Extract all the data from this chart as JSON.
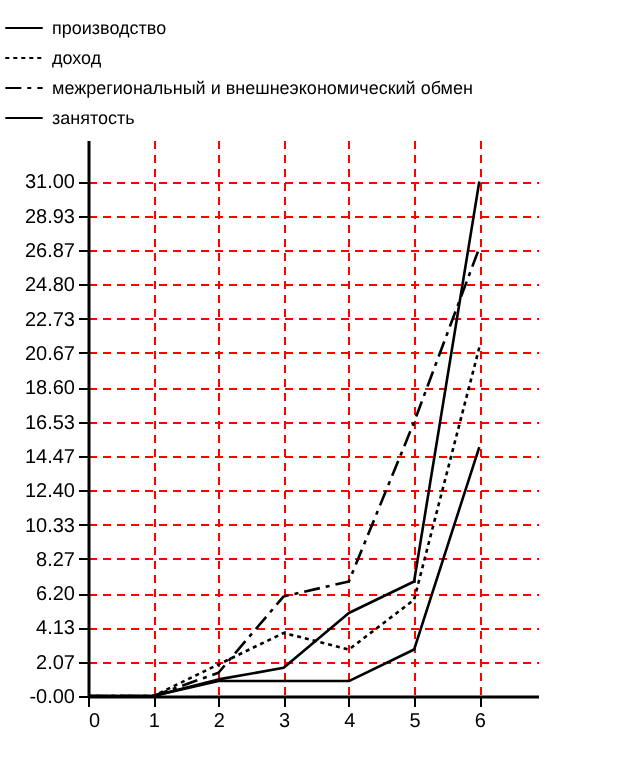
{
  "chart_data": {
    "type": "line",
    "x": [
      0,
      1,
      2,
      3,
      4,
      5,
      6
    ],
    "series": [
      {
        "name": "производство",
        "color": "#000000",
        "line_style": "solid",
        "values": [
          0,
          0,
          1.0,
          1.7,
          5.0,
          6.9,
          31
        ]
      },
      {
        "name": "доход",
        "color": "#000000",
        "line_style": "dotted",
        "values": [
          0,
          0,
          1.9,
          3.8,
          2.8,
          5.8,
          21
        ]
      },
      {
        "name": "межрегиональный и внешнеэкономический обмен",
        "color": "#000000",
        "line_style": "dashed",
        "values": [
          0,
          0,
          1.4,
          6.0,
          6.9,
          16.5,
          27
        ]
      },
      {
        "name": "занятость",
        "color": "#000000",
        "line_style": "solid",
        "values": [
          0,
          0,
          0.9,
          0.9,
          0.9,
          2.8,
          15
        ]
      }
    ],
    "xlim": [
      0,
      6.9
    ],
    "xticks": [
      0,
      1,
      2,
      3,
      4,
      5,
      6
    ],
    "ylim": [
      0,
      33.5
    ],
    "yticks": [
      {
        "value": 0,
        "label": "-0.00"
      },
      {
        "value": 2.07,
        "label": "2.07"
      },
      {
        "value": 4.13,
        "label": "4.13"
      },
      {
        "value": 6.2,
        "label": "6.20"
      },
      {
        "value": 8.27,
        "label": "8.27"
      },
      {
        "value": 10.33,
        "label": "10.33"
      },
      {
        "value": 12.4,
        "label": "12.40"
      },
      {
        "value": 14.47,
        "label": "14.47"
      },
      {
        "value": 16.53,
        "label": "16.53"
      },
      {
        "value": 18.6,
        "label": "18.60"
      },
      {
        "value": 20.67,
        "label": "20.67"
      },
      {
        "value": 22.73,
        "label": "22.73"
      },
      {
        "value": 24.8,
        "label": "24.80"
      },
      {
        "value": 26.87,
        "label": "26.87"
      },
      {
        "value": 28.93,
        "label": "28.93"
      },
      {
        "value": 31,
        "label": "31.00"
      }
    ],
    "grid": true,
    "legend": "top",
    "marker": "none"
  }
}
